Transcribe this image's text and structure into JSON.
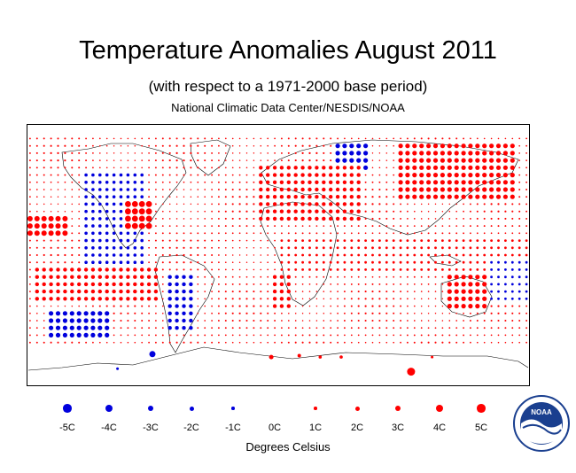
{
  "title": "Temperature Anomalies August 2011",
  "subtitle": "(with respect to a 1971-2000 base period)",
  "source": "National Climatic Data Center/NESDIS/NOAA",
  "legend": {
    "items": [
      {
        "label": "-5C",
        "value": -5
      },
      {
        "label": "-4C",
        "value": -4
      },
      {
        "label": "-3C",
        "value": -3
      },
      {
        "label": "-2C",
        "value": -2
      },
      {
        "label": "-1C",
        "value": -1
      },
      {
        "label": "0C",
        "value": 0
      },
      {
        "label": "1C",
        "value": 1
      },
      {
        "label": "2C",
        "value": 2
      },
      {
        "label": "3C",
        "value": 3
      },
      {
        "label": "4C",
        "value": 4
      },
      {
        "label": "5C",
        "value": 5
      }
    ],
    "units": "Degrees Celsius"
  },
  "colors": {
    "warm": "#ff0000",
    "cold": "#0000dd",
    "coast": "#000000",
    "frame": "#000000"
  },
  "logo": {
    "text": "NOAA",
    "icon": "noaa-seal-icon"
  },
  "chart_data": {
    "type": "scatter",
    "description_values": "grid of anomaly dots on equirectangular world map; dot size proportional to magnitude, red = warmer, blue = cooler",
    "lon_range": [
      -180,
      180
    ],
    "lat_range": [
      -90,
      90
    ],
    "grid_step_deg": 5,
    "regions": [
      {
        "lon": [
          -180,
          -150
        ],
        "lat": [
          15,
          25
        ],
        "anomaly": 3
      },
      {
        "lon": [
          -140,
          -95
        ],
        "lat": [
          -5,
          55
        ],
        "anomaly": -1.5
      },
      {
        "lon": [
          -110,
          -90
        ],
        "lat": [
          20,
          35
        ],
        "anomaly": 3.5
      },
      {
        "lon": [
          -80,
          -60
        ],
        "lat": [
          -50,
          -15
        ],
        "anomaly": -2
      },
      {
        "lon": [
          -175,
          -85
        ],
        "lat": [
          -30,
          -10
        ],
        "anomaly": 2
      },
      {
        "lon": [
          -165,
          -120
        ],
        "lat": [
          -55,
          -40
        ],
        "anomaly": -2.5
      },
      {
        "lon": [
          40,
          65
        ],
        "lat": [
          60,
          75
        ],
        "anomaly": -2.5
      },
      {
        "lon": [
          -15,
          60
        ],
        "lat": [
          25,
          60
        ],
        "anomaly": 2
      },
      {
        "lon": [
          85,
          170
        ],
        "lat": [
          40,
          75
        ],
        "anomaly": 2.5
      },
      {
        "lon": [
          120,
          150
        ],
        "lat": [
          -35,
          -15
        ],
        "anomaly": 2.5
      },
      {
        "lon": [
          -5,
          10
        ],
        "lat": [
          -35,
          -15
        ],
        "anomaly": 2
      },
      {
        "lon": [
          0,
          180
        ],
        "lat": [
          -10,
          10
        ],
        "anomaly": 1
      },
      {
        "lon": [
          150,
          180
        ],
        "lat": [
          -30,
          -5
        ],
        "anomaly": -1
      }
    ]
  }
}
